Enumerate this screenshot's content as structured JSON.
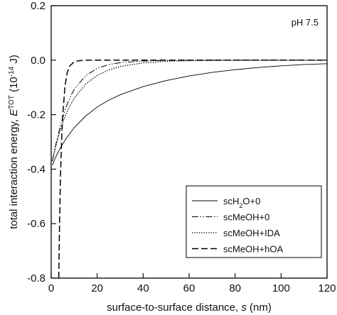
{
  "chart_data": {
    "type": "line",
    "title": "",
    "annotation": "pH 7.5",
    "xlabel": "surface-to-surface distance, s (nm)",
    "ylabel": "total interaction energy, E^TOT (10^-14 J)",
    "ylabel_parts": {
      "prefix": "total interaction energy, ",
      "symbol": "E",
      "superscript": "TOT",
      "unit_open": " (10",
      "unit_exponent": "-14",
      "unit_close": " J)"
    },
    "xlabel_parts": {
      "prefix": "surface-to-surface distance, ",
      "symbol": "s",
      "suffix": " (nm)"
    },
    "xlim": [
      0,
      120
    ],
    "ylim": [
      -0.8,
      0.2
    ],
    "xticks": [
      "0",
      "20",
      "40",
      "60",
      "80",
      "100",
      "120"
    ],
    "yticks": [
      "0.2",
      "0.0",
      "-0.2",
      "-0.4",
      "-0.6",
      "-0.8"
    ],
    "xtick_values": [
      0,
      20,
      40,
      60,
      80,
      100,
      120
    ],
    "ytick_values": [
      0.2,
      0.0,
      -0.2,
      -0.4,
      -0.6,
      -0.8
    ],
    "grid": false,
    "legend_position": "bottom-right",
    "series": [
      {
        "name": "scH2O+0",
        "name_parts": [
          "scH",
          "2",
          "O+0"
        ],
        "style": "solid",
        "x": [
          0.5,
          2,
          4,
          6,
          8,
          10,
          15,
          20,
          25,
          30,
          40,
          50,
          60,
          70,
          80,
          90,
          100,
          110,
          120
        ],
        "y": [
          -0.385,
          -0.355,
          -0.322,
          -0.294,
          -0.27,
          -0.248,
          -0.205,
          -0.172,
          -0.147,
          -0.127,
          -0.097,
          -0.075,
          -0.058,
          -0.045,
          -0.035,
          -0.027,
          -0.021,
          -0.016,
          -0.013
        ]
      },
      {
        "name": "scMeOH+0",
        "name_parts": [
          "scMeOH+0"
        ],
        "style": "dash-dot-dot",
        "x": [
          0.5,
          2,
          4,
          6,
          8,
          10,
          15,
          20,
          25,
          30,
          40,
          50,
          60,
          70,
          80,
          100,
          120
        ],
        "y": [
          -0.37,
          -0.31,
          -0.24,
          -0.183,
          -0.14,
          -0.107,
          -0.057,
          -0.03,
          -0.016,
          -0.009,
          -0.003,
          -0.001,
          -0.0005,
          0,
          0,
          0,
          0
        ]
      },
      {
        "name": "scMeOH+IDA",
        "name_parts": [
          "scMeOH+IDA"
        ],
        "style": "dotted",
        "x": [
          0.5,
          2,
          4,
          6,
          8,
          10,
          15,
          20,
          25,
          30,
          40,
          50,
          60,
          70,
          80,
          100,
          120
        ],
        "y": [
          -0.37,
          -0.315,
          -0.255,
          -0.207,
          -0.17,
          -0.14,
          -0.088,
          -0.056,
          -0.036,
          -0.023,
          -0.01,
          -0.004,
          -0.002,
          -0.001,
          0,
          0,
          0
        ]
      },
      {
        "name": "scMeOH+hOA",
        "name_parts": [
          "scMeOH+hOA"
        ],
        "style": "dashed",
        "x": [
          3.3,
          3.6,
          4,
          4.5,
          5,
          6,
          7,
          8,
          10,
          12,
          15,
          20,
          25,
          30,
          40,
          60,
          80,
          100,
          120
        ],
        "y": [
          -0.8,
          -0.62,
          -0.44,
          -0.3,
          -0.205,
          -0.095,
          -0.045,
          -0.022,
          -0.006,
          -0.002,
          0,
          0,
          0,
          0,
          0,
          0,
          0,
          0,
          0
        ]
      }
    ]
  }
}
